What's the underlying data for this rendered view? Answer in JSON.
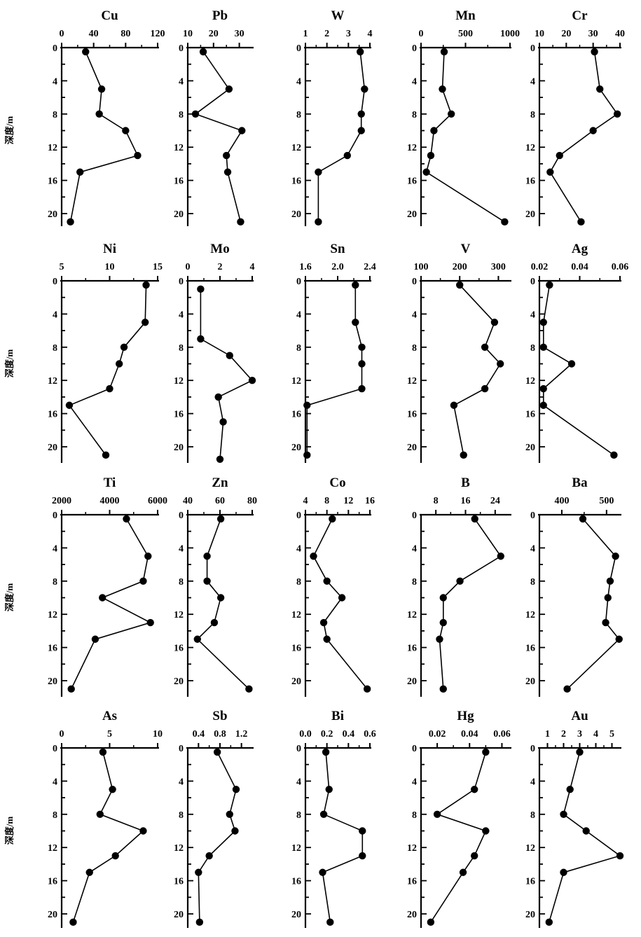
{
  "figure": {
    "ylabel": "深度/m"
  },
  "chart_data": [
    {
      "type": "line",
      "title": "Cu",
      "ylabel": "深度/m",
      "xticks": [
        "0",
        "40",
        "80",
        "120"
      ],
      "xlim": [
        0,
        120
      ],
      "yticks": [
        "0",
        "4",
        "8",
        "12",
        "16",
        "20"
      ],
      "ylim": [
        0,
        22
      ],
      "points": [
        [
          30,
          0.5
        ],
        [
          50,
          5
        ],
        [
          47,
          8
        ],
        [
          80,
          10
        ],
        [
          95,
          13
        ],
        [
          23,
          15
        ],
        [
          11,
          21
        ]
      ]
    },
    {
      "type": "line",
      "title": "Pb",
      "ylabel": "",
      "xticks": [
        "10",
        "20",
        "30"
      ],
      "xlim": [
        10,
        35
      ],
      "yticks": [
        "0",
        "4",
        "8",
        "12",
        "16",
        "20"
      ],
      "ylim": [
        0,
        22
      ],
      "points": [
        [
          16,
          0.5
        ],
        [
          26,
          5
        ],
        [
          13,
          8
        ],
        [
          31,
          10
        ],
        [
          25,
          13
        ],
        [
          25.5,
          15
        ],
        [
          30.5,
          21
        ]
      ]
    },
    {
      "type": "line",
      "title": "W",
      "ylabel": "",
      "xticks": [
        "1",
        "2",
        "3",
        "4"
      ],
      "xlim": [
        1,
        4
      ],
      "yticks": [
        "0",
        "4",
        "8",
        "12",
        "16",
        "20"
      ],
      "ylim": [
        0,
        22
      ],
      "points": [
        [
          3.55,
          0.5
        ],
        [
          3.75,
          5
        ],
        [
          3.6,
          8
        ],
        [
          3.6,
          10
        ],
        [
          2.95,
          13
        ],
        [
          1.6,
          15
        ],
        [
          1.6,
          21
        ]
      ]
    },
    {
      "type": "line",
      "title": "Mn",
      "ylabel": "",
      "xticks": [
        "0",
        "500",
        "1000"
      ],
      "xlim": [
        0,
        1000
      ],
      "yticks": [
        "0",
        "4",
        "8",
        "12",
        "16",
        "20"
      ],
      "ylim": [
        0,
        22
      ],
      "points": [
        [
          260,
          0.5
        ],
        [
          240,
          5
        ],
        [
          340,
          8
        ],
        [
          145,
          10
        ],
        [
          110,
          13
        ],
        [
          60,
          15
        ],
        [
          940,
          21
        ]
      ]
    },
    {
      "type": "line",
      "title": "Cr",
      "ylabel": "",
      "xticks": [
        "10",
        "20",
        "30",
        "40"
      ],
      "xlim": [
        10,
        40
      ],
      "yticks": [
        "0",
        "4",
        "8",
        "12",
        "16",
        "20"
      ],
      "ylim": [
        0,
        22
      ],
      "points": [
        [
          30.5,
          0.5
        ],
        [
          32.5,
          5
        ],
        [
          39,
          8
        ],
        [
          30,
          10
        ],
        [
          17.5,
          13
        ],
        [
          14,
          15
        ],
        [
          25.5,
          21
        ]
      ]
    },
    {
      "type": "line",
      "title": "Ni",
      "ylabel": "深度/m",
      "xticks": [
        "5",
        "10",
        "15"
      ],
      "xlim": [
        5,
        15
      ],
      "yticks": [
        "0",
        "4",
        "8",
        "12",
        "16",
        "20"
      ],
      "ylim": [
        0,
        22
      ],
      "points": [
        [
          13.8,
          0.5
        ],
        [
          13.7,
          5
        ],
        [
          11.5,
          8
        ],
        [
          11,
          10
        ],
        [
          10,
          13
        ],
        [
          5.8,
          15
        ],
        [
          9.6,
          21
        ]
      ]
    },
    {
      "type": "line",
      "title": "Mo",
      "ylabel": "",
      "xticks": [
        "0",
        "2",
        "4"
      ],
      "xlim": [
        0,
        4
      ],
      "yticks": [
        "0",
        "4",
        "8",
        "12",
        "16",
        "20"
      ],
      "ylim": [
        0,
        22
      ],
      "points": [
        [
          0.8,
          1
        ],
        [
          0.8,
          7
        ],
        [
          2.6,
          9
        ],
        [
          4,
          12
        ],
        [
          1.9,
          14
        ],
        [
          2.2,
          17
        ],
        [
          2,
          21.5
        ]
      ]
    },
    {
      "type": "line",
      "title": "Sn",
      "ylabel": "",
      "xticks": [
        "1.6",
        "2.0",
        "2.4"
      ],
      "xlim": [
        1.6,
        2.4
      ],
      "yticks": [
        "0",
        "4",
        "8",
        "12",
        "16",
        "20"
      ],
      "ylim": [
        0,
        22
      ],
      "points": [
        [
          2.22,
          0.5
        ],
        [
          2.22,
          5
        ],
        [
          2.3,
          8
        ],
        [
          2.3,
          10
        ],
        [
          2.3,
          13
        ],
        [
          1.62,
          15
        ],
        [
          1.62,
          21
        ]
      ]
    },
    {
      "type": "line",
      "title": "V",
      "ylabel": "",
      "xticks": [
        "100",
        "200",
        "300"
      ],
      "xlim": [
        100,
        330
      ],
      "yticks": [
        "0",
        "4",
        "8",
        "12",
        "16",
        "20"
      ],
      "ylim": [
        0,
        22
      ],
      "points": [
        [
          200,
          0.5
        ],
        [
          290,
          5
        ],
        [
          265,
          8
        ],
        [
          305,
          10
        ],
        [
          265,
          13
        ],
        [
          185,
          15
        ],
        [
          210,
          21
        ]
      ]
    },
    {
      "type": "line",
      "title": "Ag",
      "ylabel": "",
      "xticks": [
        "0.02",
        "0.04",
        "0.06"
      ],
      "xlim": [
        0.02,
        0.06
      ],
      "yticks": [
        "0",
        "4",
        "8",
        "12",
        "16",
        "20"
      ],
      "ylim": [
        0,
        22
      ],
      "points": [
        [
          0.025,
          0.5
        ],
        [
          0.022,
          5
        ],
        [
          0.022,
          8
        ],
        [
          0.036,
          10
        ],
        [
          0.022,
          13
        ],
        [
          0.022,
          15
        ],
        [
          0.057,
          21
        ]
      ]
    },
    {
      "type": "line",
      "title": "Ti",
      "ylabel": "深度/m",
      "xticks": [
        "2000",
        "4000",
        "6000"
      ],
      "xlim": [
        2000,
        6000
      ],
      "yticks": [
        "0",
        "4",
        "8",
        "12",
        "16",
        "20"
      ],
      "ylim": [
        0,
        22
      ],
      "points": [
        [
          4700,
          0.5
        ],
        [
          5600,
          5
        ],
        [
          5400,
          8
        ],
        [
          3700,
          10
        ],
        [
          5700,
          13
        ],
        [
          3400,
          15
        ],
        [
          2400,
          21
        ]
      ]
    },
    {
      "type": "line",
      "title": "Zn",
      "ylabel": "",
      "xticks": [
        "40",
        "60",
        "80"
      ],
      "xlim": [
        40,
        80
      ],
      "yticks": [
        "0",
        "4",
        "8",
        "12",
        "16",
        "20"
      ],
      "ylim": [
        0,
        22
      ],
      "points": [
        [
          60.5,
          0.5
        ],
        [
          52,
          5
        ],
        [
          52,
          8
        ],
        [
          60.5,
          10
        ],
        [
          56.5,
          13
        ],
        [
          46,
          15
        ],
        [
          78,
          21
        ]
      ]
    },
    {
      "type": "line",
      "title": "Co",
      "ylabel": "",
      "xticks": [
        "4",
        "8",
        "12",
        "16"
      ],
      "xlim": [
        4,
        16
      ],
      "yticks": [
        "0",
        "4",
        "8",
        "12",
        "16",
        "20"
      ],
      "ylim": [
        0,
        22
      ],
      "points": [
        [
          9,
          0.5
        ],
        [
          5.5,
          5
        ],
        [
          8,
          8
        ],
        [
          10.8,
          10
        ],
        [
          7.4,
          13
        ],
        [
          8,
          15
        ],
        [
          15.5,
          21
        ]
      ]
    },
    {
      "type": "line",
      "title": "B",
      "ylabel": "",
      "xticks": [
        "8",
        "16",
        "24"
      ],
      "xlim": [
        4,
        28
      ],
      "yticks": [
        "0",
        "4",
        "8",
        "12",
        "16",
        "20"
      ],
      "ylim": [
        0,
        22
      ],
      "points": [
        [
          18.5,
          0.5
        ],
        [
          25.5,
          5
        ],
        [
          14.5,
          8
        ],
        [
          10,
          10
        ],
        [
          10,
          13
        ],
        [
          9,
          15
        ],
        [
          10,
          21
        ]
      ]
    },
    {
      "type": "line",
      "title": "Ba",
      "ylabel": "",
      "xticks": [
        "400",
        "500"
      ],
      "xlim": [
        350,
        530
      ],
      "yticks": [
        "0",
        "4",
        "8",
        "12",
        "16",
        "20"
      ],
      "ylim": [
        0,
        22
      ],
      "points": [
        [
          447,
          0.5
        ],
        [
          520,
          5
        ],
        [
          508,
          8
        ],
        [
          503,
          10
        ],
        [
          498,
          13
        ],
        [
          528,
          15
        ],
        [
          412,
          21
        ]
      ]
    },
    {
      "type": "line",
      "title": "As",
      "ylabel": "深度/m",
      "xticks": [
        "0",
        "5",
        "10"
      ],
      "xlim": [
        0,
        10
      ],
      "yticks": [
        "0",
        "4",
        "8",
        "12",
        "16",
        "20"
      ],
      "ylim": [
        0,
        22
      ],
      "points": [
        [
          4.3,
          0.5
        ],
        [
          5.3,
          5
        ],
        [
          4,
          8
        ],
        [
          8.5,
          10
        ],
        [
          5.6,
          13
        ],
        [
          2.9,
          15
        ],
        [
          1.2,
          21
        ]
      ]
    },
    {
      "type": "line",
      "title": "Sb",
      "ylabel": "",
      "xticks": [
        "0.4",
        "0.8",
        "1.2"
      ],
      "xlim": [
        0.2,
        1.4
      ],
      "yticks": [
        "0",
        "4",
        "8",
        "12",
        "16",
        "20"
      ],
      "ylim": [
        0,
        22
      ],
      "points": [
        [
          0.75,
          0.5
        ],
        [
          1.1,
          5
        ],
        [
          0.98,
          8
        ],
        [
          1.08,
          10
        ],
        [
          0.6,
          13
        ],
        [
          0.4,
          15
        ],
        [
          0.42,
          21
        ]
      ]
    },
    {
      "type": "line",
      "title": "Bi",
      "ylabel": "",
      "xticks": [
        "0.0",
        "0.2",
        "0.4",
        "0.6"
      ],
      "xlim": [
        0,
        0.6
      ],
      "yticks": [
        "0",
        "4",
        "8",
        "12",
        "16",
        "20"
      ],
      "ylim": [
        0,
        22
      ],
      "points": [
        [
          0.19,
          0.5
        ],
        [
          0.22,
          5
        ],
        [
          0.17,
          8
        ],
        [
          0.53,
          10
        ],
        [
          0.53,
          13
        ],
        [
          0.16,
          15
        ],
        [
          0.23,
          21
        ]
      ]
    },
    {
      "type": "line",
      "title": "Hg",
      "ylabel": "",
      "xticks": [
        "0.02",
        "0.04",
        "0.06"
      ],
      "xlim": [
        0.01,
        0.065
      ],
      "yticks": [
        "0",
        "4",
        "8",
        "12",
        "16",
        "20"
      ],
      "ylim": [
        0,
        22
      ],
      "points": [
        [
          0.05,
          0.5
        ],
        [
          0.043,
          5
        ],
        [
          0.02,
          8
        ],
        [
          0.05,
          10
        ],
        [
          0.043,
          13
        ],
        [
          0.036,
          15
        ],
        [
          0.016,
          21
        ]
      ]
    },
    {
      "type": "line",
      "title": "Au",
      "ylabel": "",
      "xticks": [
        "1",
        "2",
        "3",
        "4",
        "5"
      ],
      "xlim": [
        0.5,
        5.5
      ],
      "yticks": [
        "0",
        "4",
        "8",
        "12",
        "16",
        "20"
      ],
      "ylim": [
        0,
        22
      ],
      "points": [
        [
          3,
          0.5
        ],
        [
          2.4,
          5
        ],
        [
          2,
          8
        ],
        [
          3.4,
          10
        ],
        [
          5.5,
          13
        ],
        [
          2,
          15
        ],
        [
          1.1,
          21
        ]
      ]
    }
  ]
}
